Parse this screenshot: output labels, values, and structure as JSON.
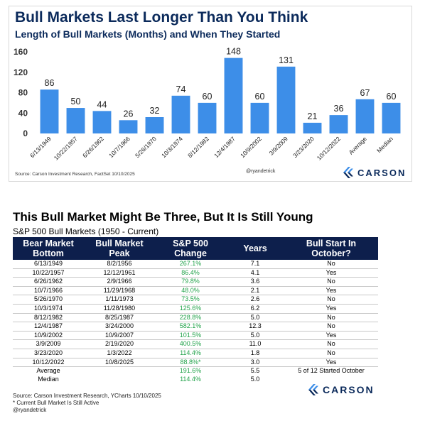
{
  "top": {
    "title": "Bull Markets Last Longer Than You Think",
    "subtitle": "Length of Bull Markets (Months) and When They Started",
    "source": "Source: Carson Investment Research, FactSet 10/10/2025",
    "handle": "@ryandetrick",
    "logo_text": "CARSON"
  },
  "chart_data": {
    "type": "bar",
    "title": "Bull Markets Last Longer Than You Think",
    "subtitle": "Length of Bull Markets (Months) and When They Started",
    "categories": [
      "6/13/1949",
      "10/22/1957",
      "6/26/1962",
      "10/7/1966",
      "5/26/1970",
      "10/3/1974",
      "8/12/1982",
      "12/4/1987",
      "10/9/2002",
      "3/9/2009",
      "3/23/2020",
      "10/12/2022",
      "Average",
      "Median"
    ],
    "values": [
      86,
      50,
      44,
      26,
      32,
      74,
      60,
      148,
      60,
      131,
      21,
      36,
      67,
      60
    ],
    "yticks": [
      0,
      40,
      80,
      120,
      160
    ],
    "ylim": [
      0,
      160
    ],
    "grid": false,
    "bar_color": "#3d8ee8"
  },
  "bottom": {
    "title": "This Bull Market Might Be Three, But It Is Still Young",
    "subtitle": "S&P 500 Bull Markets (1950 - Current)",
    "headers": [
      "Bear Market Bottom",
      "Bull Market Peak",
      "S&P 500 Change",
      "Years",
      "Bull Start In October?"
    ],
    "rows": [
      [
        "6/13/1949",
        "8/2/1956",
        "267.1%",
        "7.1",
        "No"
      ],
      [
        "10/22/1957",
        "12/12/1961",
        "86.4%",
        "4.1",
        "Yes"
      ],
      [
        "6/26/1962",
        "2/9/1966",
        "79.8%",
        "3.6",
        "No"
      ],
      [
        "10/7/1966",
        "11/29/1968",
        "48.0%",
        "2.1",
        "Yes"
      ],
      [
        "5/26/1970",
        "1/11/1973",
        "73.5%",
        "2.6",
        "No"
      ],
      [
        "10/3/1974",
        "11/28/1980",
        "125.6%",
        "6.2",
        "Yes"
      ],
      [
        "8/12/1982",
        "8/25/1987",
        "228.8%",
        "5.0",
        "No"
      ],
      [
        "12/4/1987",
        "3/24/2000",
        "582.1%",
        "12.3",
        "No"
      ],
      [
        "10/9/2002",
        "10/9/2007",
        "101.5%",
        "5.0",
        "Yes"
      ],
      [
        "3/9/2009",
        "2/19/2020",
        "400.5%",
        "11.0",
        "No"
      ],
      [
        "3/23/2020",
        "1/3/2022",
        "114.4%",
        "1.8",
        "No"
      ],
      [
        "10/12/2022",
        "10/8/2025",
        "88.8%*",
        "3.0",
        "Yes"
      ]
    ],
    "average": {
      "label": "Average",
      "change": "191.6%",
      "years": "5.5",
      "october": "5 of 12 Started October"
    },
    "median": {
      "label": "Median",
      "change": "114.4%",
      "years": "5.0"
    },
    "source_lines": [
      "Source: Carson Investment Research, YCharts 10/10/2025",
      "* Current Bull Market Is Still Active",
      "@ryandetrick"
    ],
    "logo_text": "CARSON"
  },
  "colors": {
    "navy": "#0b2a5b",
    "header_bg": "#0d1f4c",
    "change_green": "#22a34a",
    "bar": "#3d8ee8"
  }
}
